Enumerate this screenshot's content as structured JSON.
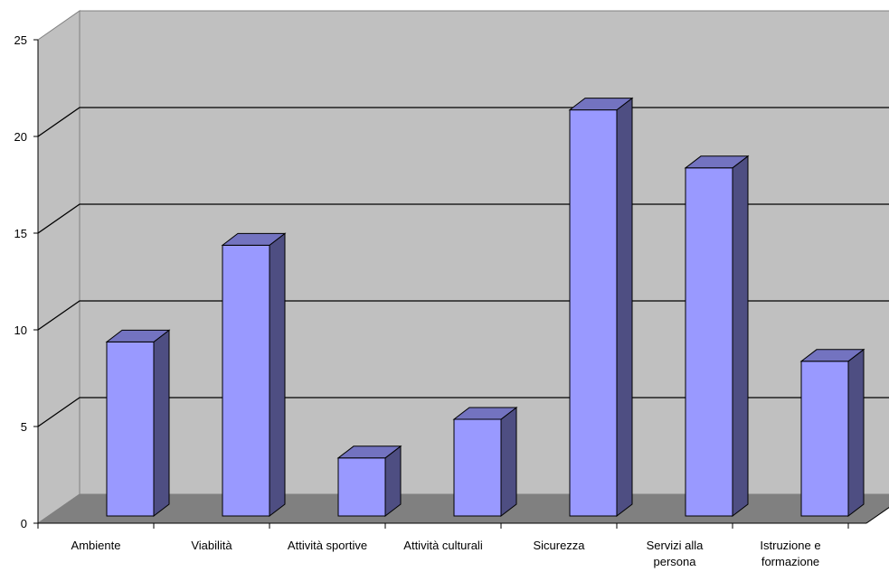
{
  "chart_data": {
    "type": "bar",
    "categories": [
      [
        "Ambiente"
      ],
      [
        "Viabilità"
      ],
      [
        "Attività sportive"
      ],
      [
        "Attività culturali"
      ],
      [
        "Sicurezza"
      ],
      [
        "Servizi alla",
        "persona"
      ],
      [
        "Istruzione e",
        "formazione"
      ]
    ],
    "values": [
      9,
      14,
      3,
      5,
      21,
      18,
      8
    ],
    "ylim": [
      0,
      25
    ],
    "yticks": [
      "0",
      "5",
      "10",
      "15",
      "20",
      "25"
    ],
    "grid": true,
    "style": "3d-column",
    "colors": {
      "bar_front": "#9999FF",
      "bar_side": "#4E4E82",
      "bar_top": "#7373C0",
      "back_wall": "#C0C0C0",
      "side_wall": "#C0C0C0",
      "floor": "#808080",
      "gridline": "#000000"
    }
  }
}
